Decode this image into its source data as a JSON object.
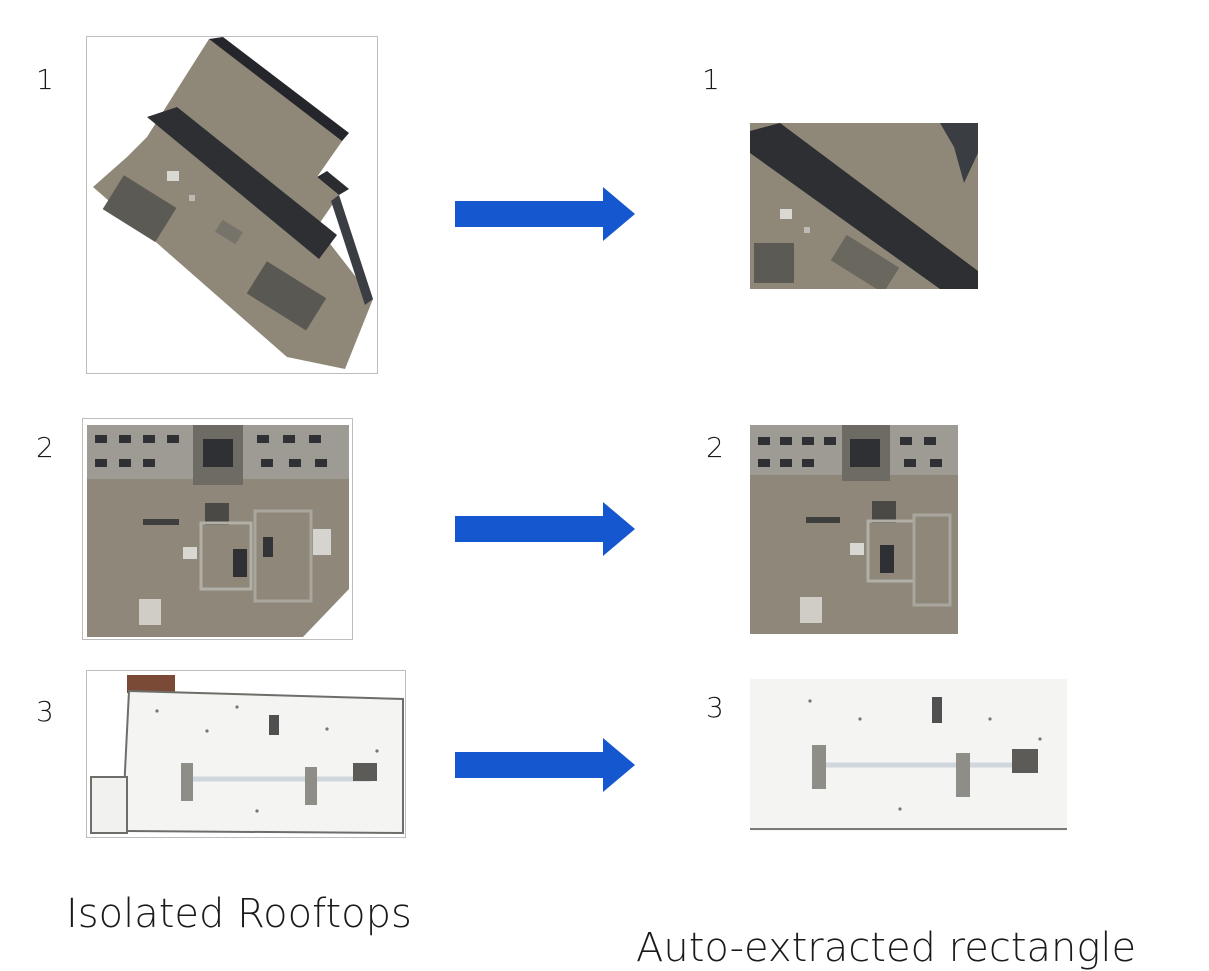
{
  "rows": [
    {
      "number": "1",
      "result_number": "1"
    },
    {
      "number": "2",
      "result_number": "2"
    },
    {
      "number": "3",
      "result_number": "3"
    }
  ],
  "captions": {
    "left": "Isolated Rooftops",
    "right": "Auto-extracted rectangle"
  },
  "colors": {
    "arrow": "#1457cf",
    "frame": "#bdbdbd",
    "gravel_roof": "#8f8878",
    "dark_band": "#2d2f33",
    "white_roof": "#f4f4f2"
  }
}
